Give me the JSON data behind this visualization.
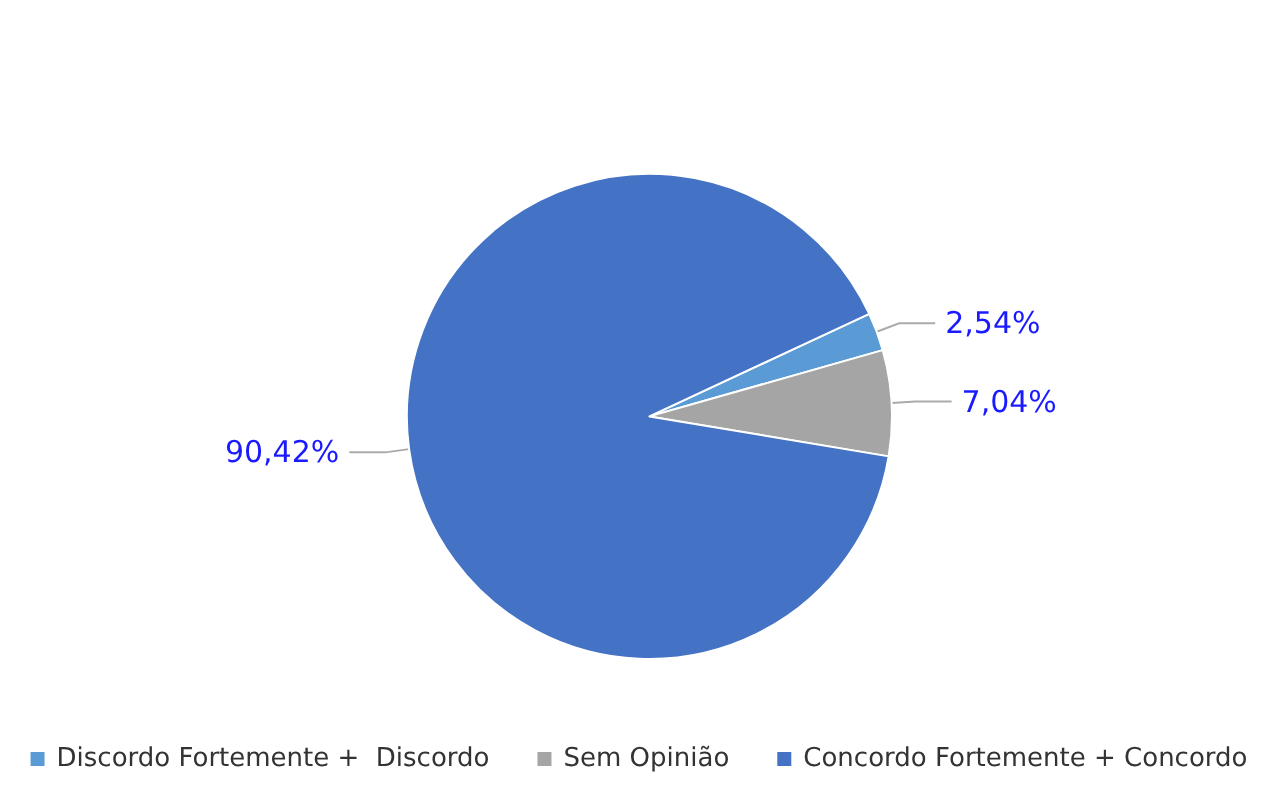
{
  "chart_data": {
    "type": "pie",
    "categories": [
      "Discordo Fortemente +  Discordo",
      "Sem Opinião",
      "Concordo Fortemente + Concordo"
    ],
    "values": [
      2.54,
      7.04,
      90.42
    ],
    "colors": [
      "#5b9bd5",
      "#a5a5a5",
      "#4472c4"
    ],
    "value_labels": [
      "2,54%",
      "7,04%",
      "90,42%"
    ],
    "legend": "bottom"
  }
}
